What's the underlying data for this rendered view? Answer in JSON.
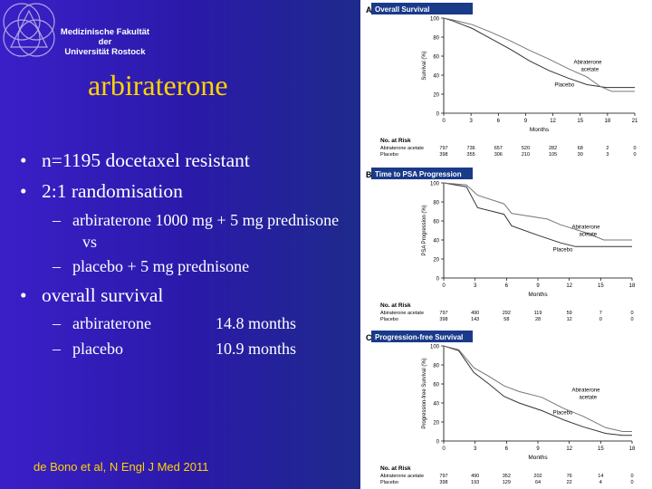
{
  "header": {
    "faculty_line1": "Medizinische Fakultät der",
    "faculty_line2": "Universität Rostock"
  },
  "slide": {
    "title": "arbiraterone",
    "bullets": [
      "n=1195 docetaxel resistant",
      "2:1 randomisation"
    ],
    "bullet_marker": "•",
    "dash_marker": "–",
    "sub_bullets": [
      "arbiraterone 1000 mg + 5 mg prednisone",
      "vs",
      "placebo + 5 mg prednisone"
    ],
    "os_bullet": "overall survival",
    "os_rows": [
      {
        "label": "arbiraterone",
        "value": "14.8 months"
      },
      {
        "label": "placebo",
        "value": "10.9 months"
      }
    ],
    "citation": "de Bono et al, N Engl J Med 2011"
  },
  "panels": [
    {
      "letter": "A",
      "title": "Overall Survival",
      "ylabel": "Survival (%)",
      "xlabel": "Months",
      "yticks": [
        "100",
        "80",
        "60",
        "40",
        "20",
        "0"
      ],
      "xticks": [
        "0",
        "3",
        "6",
        "9",
        "12",
        "15",
        "18",
        "21"
      ],
      "legend_treatment": [
        "Abiraterone",
        "acetate"
      ],
      "legend_placebo": "Placebo",
      "risk_title": "No. at Risk",
      "risk_rows": [
        {
          "label": "Abiraterone acetate",
          "values": [
            "797",
            "736",
            "657",
            "520",
            "282",
            "68",
            "2",
            "0"
          ]
        },
        {
          "label": "Placebo",
          "values": [
            "398",
            "355",
            "306",
            "210",
            "105",
            "30",
            "3",
            "0"
          ]
        }
      ]
    },
    {
      "letter": "B",
      "title": "Time to PSA Progression",
      "ylabel": "PSA Progression (%)",
      "xlabel": "Months",
      "yticks": [
        "100",
        "80",
        "60",
        "40",
        "20",
        "0"
      ],
      "xticks": [
        "0",
        "3",
        "6",
        "9",
        "12",
        "15",
        "18"
      ],
      "legend_treatment": [
        "Abiraterone",
        "acetate"
      ],
      "legend_placebo": "Placebo",
      "risk_title": "No. at Risk",
      "risk_rows": [
        {
          "label": "Abiraterone acetate",
          "values": [
            "797",
            "490",
            "292",
            "119",
            "59",
            "7",
            "0"
          ]
        },
        {
          "label": "Placebo",
          "values": [
            "398",
            "143",
            "58",
            "28",
            "12",
            "0",
            "0"
          ]
        }
      ]
    },
    {
      "letter": "C",
      "title": "Progression-free Survival",
      "ylabel": "Progression-free Survival (%)",
      "xlabel": "Months",
      "yticks": [
        "100",
        "80",
        "60",
        "40",
        "20",
        "0"
      ],
      "xticks": [
        "0",
        "3",
        "6",
        "9",
        "12",
        "15",
        "18"
      ],
      "legend_treatment": [
        "Abiraterone",
        "acetate"
      ],
      "legend_placebo": "Placebo",
      "risk_title": "No. at Risk",
      "risk_rows": [
        {
          "label": "Abiraterone acetate",
          "values": [
            "797",
            "490",
            "352",
            "202",
            "76",
            "14",
            "0"
          ]
        },
        {
          "label": "Placebo",
          "values": [
            "398",
            "193",
            "129",
            "64",
            "22",
            "4",
            "0"
          ]
        }
      ]
    }
  ],
  "colors": {
    "title": "#ffd400",
    "citation": "#ffd400",
    "text": "#ffffff",
    "panel_header": "#1a3a8a"
  }
}
